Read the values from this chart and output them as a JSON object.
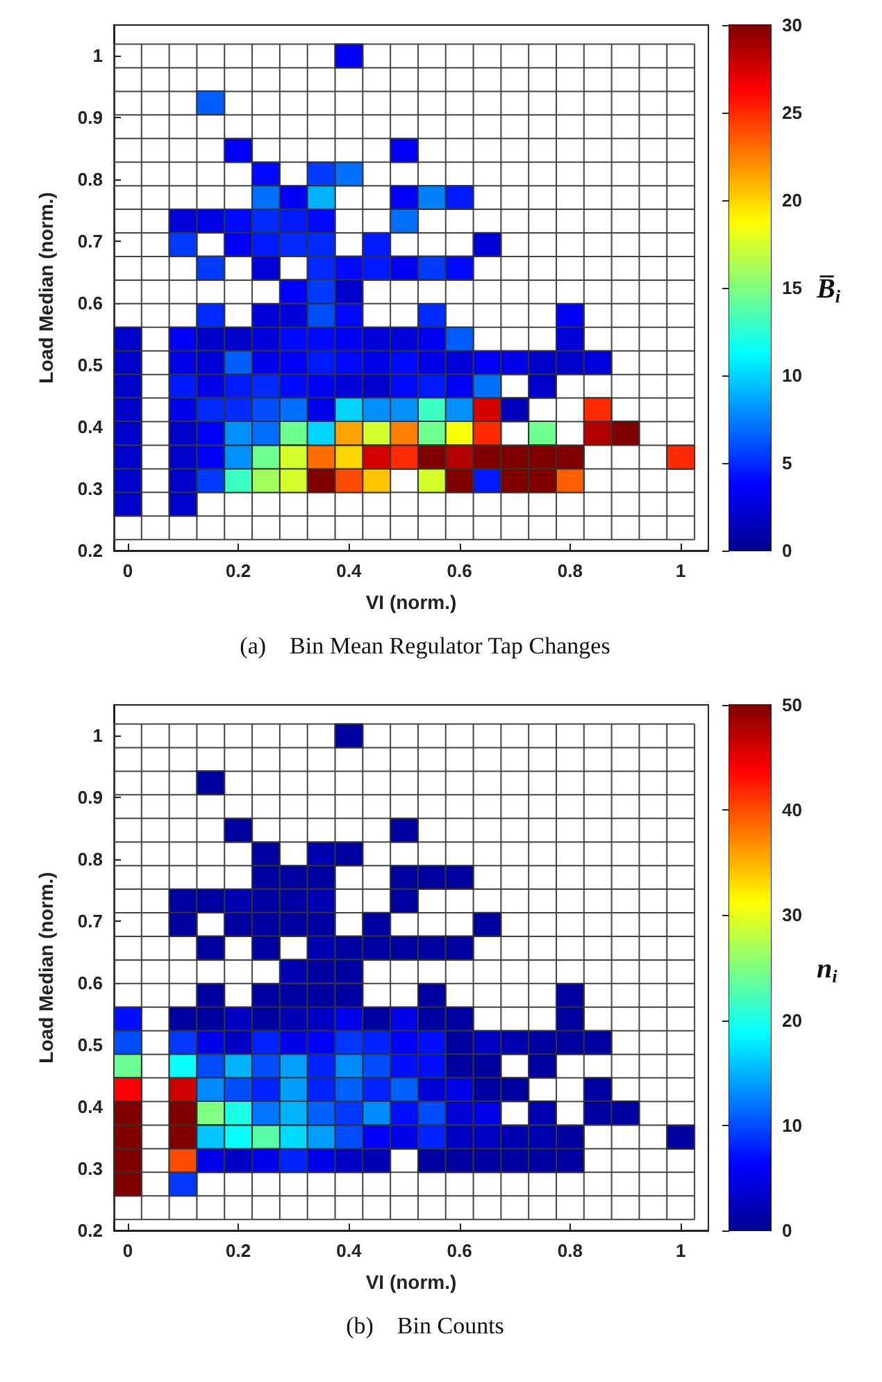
{
  "chart_data": [
    {
      "type": "heatmap",
      "xlabel": "VI (norm.)",
      "ylabel": "Load Median (norm.)",
      "clabel": "B̅$_{i}$",
      "annotations": [
        "(a)    Bin Mean Regulator Tap Changes"
      ],
      "x": [
        0,
        0.05,
        0.1,
        0.15,
        0.2,
        0.25,
        0.3,
        0.35,
        0.4,
        0.45,
        0.5,
        0.55,
        0.6,
        0.65,
        0.7,
        0.75,
        0.8,
        0.85,
        0.9,
        0.95,
        1
      ],
      "y": [
        1,
        0.924,
        0.847,
        0.809,
        0.771,
        0.733,
        0.695,
        0.657,
        0.619,
        0.58,
        0.542,
        0.504,
        0.466,
        0.428,
        0.39,
        0.351,
        0.313,
        0.275
      ],
      "xlim": [
        -0.025,
        1.05
      ],
      "ylim": [
        0.2,
        1.05
      ],
      "xticks": [
        0,
        0.2,
        0.4,
        0.6,
        0.8,
        1
      ],
      "yticks": [
        0.2,
        0.3,
        0.4,
        0.5,
        0.6,
        0.7,
        0.8,
        0.9,
        1
      ],
      "clim": [
        0,
        30
      ],
      "cticks": [
        0,
        5,
        10,
        15,
        20,
        25,
        30
      ],
      "cells": [
        [
          null,
          null,
          null,
          null,
          null,
          null,
          null,
          null,
          3.5,
          null,
          null,
          null,
          null,
          null,
          null,
          null,
          null,
          null,
          null,
          null,
          null
        ],
        [
          null,
          null,
          null,
          6.5,
          null,
          null,
          null,
          null,
          null,
          null,
          null,
          null,
          null,
          null,
          null,
          null,
          null,
          null,
          null,
          null,
          null
        ],
        [
          null,
          null,
          null,
          null,
          3.5,
          null,
          null,
          null,
          null,
          null,
          3.5,
          null,
          null,
          null,
          null,
          null,
          null,
          null,
          null,
          null,
          null
        ],
        [
          null,
          null,
          null,
          null,
          null,
          4,
          null,
          5.5,
          7,
          null,
          null,
          null,
          null,
          null,
          null,
          null,
          null,
          null,
          null,
          null,
          null
        ],
        [
          null,
          null,
          null,
          null,
          null,
          7,
          3.5,
          9,
          null,
          null,
          3.5,
          7.5,
          4.5,
          null,
          null,
          null,
          null,
          null,
          null,
          null,
          null
        ],
        [
          null,
          null,
          2.5,
          3,
          4,
          5,
          4.5,
          4,
          null,
          null,
          7,
          null,
          null,
          null,
          null,
          null,
          null,
          null,
          null,
          null,
          null
        ],
        [
          null,
          null,
          5.5,
          null,
          3.5,
          4.5,
          5,
          5,
          null,
          4.5,
          null,
          null,
          null,
          2.5,
          null,
          null,
          null,
          null,
          null,
          null,
          null
        ],
        [
          null,
          null,
          null,
          5.5,
          null,
          2.5,
          null,
          5,
          4,
          4.5,
          3.5,
          5.5,
          4,
          null,
          null,
          null,
          null,
          null,
          null,
          null,
          null
        ],
        [
          null,
          null,
          null,
          null,
          null,
          null,
          3.5,
          5.5,
          2,
          null,
          null,
          null,
          null,
          null,
          null,
          null,
          null,
          null,
          null,
          null,
          null
        ],
        [
          null,
          null,
          null,
          5,
          null,
          2.5,
          2.5,
          6,
          4,
          null,
          null,
          5,
          null,
          null,
          null,
          null,
          3.5,
          null,
          null,
          null,
          null
        ],
        [
          2,
          null,
          3.5,
          2,
          2,
          2.5,
          4,
          4,
          3.5,
          2.5,
          2.5,
          3.5,
          6.5,
          null,
          null,
          null,
          2.5,
          null,
          null,
          null,
          null
        ],
        [
          2,
          null,
          3,
          2.5,
          6.5,
          3,
          3.5,
          4.5,
          4,
          3,
          4,
          3,
          2.5,
          3.5,
          3,
          2,
          2,
          2.5,
          null,
          null,
          null
        ],
        [
          2,
          null,
          4.5,
          3,
          4.5,
          5,
          4,
          3.5,
          2.5,
          2,
          4,
          4.5,
          3.5,
          7,
          null,
          2,
          null,
          null,
          null,
          null,
          null
        ],
        [
          2,
          null,
          3,
          5,
          5,
          6,
          7,
          3,
          10,
          8,
          8,
          13,
          8,
          27.5,
          1.5,
          null,
          null,
          25,
          null,
          null,
          null
        ],
        [
          2,
          null,
          2,
          3.5,
          8,
          7,
          14.5,
          10,
          21.5,
          17.5,
          22.5,
          14.5,
          18.5,
          25,
          null,
          14.5,
          null,
          28.5,
          30,
          null,
          null
        ],
        [
          2,
          null,
          2,
          3.5,
          8,
          14.5,
          17.5,
          23,
          20,
          27.5,
          25,
          30,
          28.5,
          30,
          30,
          30,
          30,
          null,
          null,
          null,
          25
        ],
        [
          2,
          null,
          2,
          5.5,
          13,
          16,
          17.5,
          30,
          24,
          20.5,
          null,
          17.5,
          30,
          4.5,
          30,
          30,
          23.5,
          null,
          null,
          null,
          null
        ],
        [
          2,
          null,
          2,
          null,
          null,
          null,
          null,
          null,
          null,
          null,
          null,
          null,
          null,
          null,
          null,
          null,
          null,
          null,
          null,
          null,
          null
        ]
      ]
    },
    {
      "type": "heatmap",
      "xlabel": "VI (norm.)",
      "ylabel": "Load Median (norm.)",
      "clabel": "n$_{i}$",
      "annotations": [
        "(b)    Bin Counts"
      ],
      "x": [
        0,
        0.05,
        0.1,
        0.15,
        0.2,
        0.25,
        0.3,
        0.35,
        0.4,
        0.45,
        0.5,
        0.55,
        0.6,
        0.65,
        0.7,
        0.75,
        0.8,
        0.85,
        0.9,
        0.95,
        1
      ],
      "y": [
        1,
        0.924,
        0.847,
        0.809,
        0.771,
        0.733,
        0.695,
        0.657,
        0.619,
        0.58,
        0.542,
        0.504,
        0.466,
        0.428,
        0.39,
        0.351,
        0.313,
        0.275
      ],
      "xlim": [
        -0.025,
        1.05
      ],
      "ylim": [
        0.2,
        1.05
      ],
      "xticks": [
        0,
        0.2,
        0.4,
        0.6,
        0.8,
        1
      ],
      "yticks": [
        0.2,
        0.3,
        0.4,
        0.5,
        0.6,
        0.7,
        0.8,
        0.9,
        1
      ],
      "clim": [
        0,
        50
      ],
      "cticks": [
        0,
        10,
        20,
        30,
        40,
        50
      ],
      "cells": [
        [
          null,
          null,
          null,
          null,
          null,
          null,
          null,
          null,
          1,
          null,
          null,
          null,
          null,
          null,
          null,
          null,
          null,
          null,
          null,
          null,
          null
        ],
        [
          null,
          null,
          null,
          1,
          null,
          null,
          null,
          null,
          null,
          null,
          null,
          null,
          null,
          null,
          null,
          null,
          null,
          null,
          null,
          null,
          null
        ],
        [
          null,
          null,
          null,
          null,
          1,
          null,
          null,
          null,
          null,
          null,
          1,
          null,
          null,
          null,
          null,
          null,
          null,
          null,
          null,
          null,
          null
        ],
        [
          null,
          null,
          null,
          null,
          null,
          1,
          null,
          2,
          1,
          null,
          null,
          null,
          null,
          null,
          null,
          null,
          null,
          null,
          null,
          null,
          null
        ],
        [
          null,
          null,
          null,
          null,
          null,
          1,
          1,
          1,
          null,
          null,
          1,
          1,
          1,
          null,
          null,
          null,
          null,
          null,
          null,
          null,
          null
        ],
        [
          null,
          null,
          1,
          1,
          2,
          1,
          1,
          2,
          null,
          null,
          1,
          null,
          null,
          null,
          null,
          null,
          null,
          null,
          null,
          null,
          null
        ],
        [
          null,
          null,
          1,
          null,
          1,
          1,
          1,
          1,
          null,
          1,
          null,
          null,
          null,
          1,
          null,
          null,
          null,
          null,
          null,
          null,
          null
        ],
        [
          null,
          null,
          null,
          1,
          null,
          1,
          null,
          2,
          1,
          1,
          1,
          1,
          1,
          null,
          null,
          null,
          null,
          null,
          null,
          null,
          null
        ],
        [
          null,
          null,
          null,
          null,
          null,
          null,
          2,
          1,
          1,
          null,
          null,
          null,
          null,
          null,
          null,
          null,
          null,
          null,
          null,
          null,
          null
        ],
        [
          null,
          null,
          null,
          1,
          null,
          1,
          1,
          1,
          1,
          null,
          null,
          1,
          null,
          null,
          null,
          null,
          1,
          null,
          null,
          null,
          null
        ],
        [
          7,
          null,
          1,
          1,
          3,
          1,
          2,
          3,
          5,
          1,
          5,
          1,
          1,
          null,
          null,
          null,
          1,
          null,
          null,
          null,
          null
        ],
        [
          10,
          null,
          9,
          5,
          3,
          8,
          5,
          6,
          9,
          8,
          6,
          7,
          1,
          3,
          2,
          1,
          1,
          1,
          null,
          null,
          null
        ],
        [
          24,
          null,
          19,
          10,
          15,
          10,
          14,
          8,
          13,
          10,
          7,
          7,
          1,
          1,
          null,
          1,
          null,
          null,
          null,
          null,
          null
        ],
        [
          44,
          null,
          46,
          13,
          10,
          8,
          14,
          8,
          11,
          8,
          11,
          4,
          5,
          1,
          1,
          null,
          null,
          1,
          null,
          null,
          null
        ],
        [
          50,
          null,
          50,
          25,
          20,
          12,
          15,
          11,
          9,
          13,
          7,
          10,
          4,
          5,
          null,
          2,
          null,
          1,
          1,
          null,
          null
        ],
        [
          50,
          null,
          50,
          16,
          19,
          23,
          17,
          14,
          10,
          6,
          5,
          8,
          3,
          3,
          2,
          2,
          1,
          null,
          null,
          null,
          1
        ],
        [
          50,
          null,
          40,
          5,
          3,
          5,
          8,
          5,
          3,
          2,
          null,
          1,
          1,
          1,
          1,
          1,
          1,
          null,
          null,
          null,
          null
        ],
        [
          50,
          null,
          9,
          null,
          null,
          null,
          null,
          null,
          null,
          null,
          null,
          null,
          null,
          null,
          null,
          null,
          null,
          null,
          null,
          null,
          null
        ]
      ]
    }
  ]
}
